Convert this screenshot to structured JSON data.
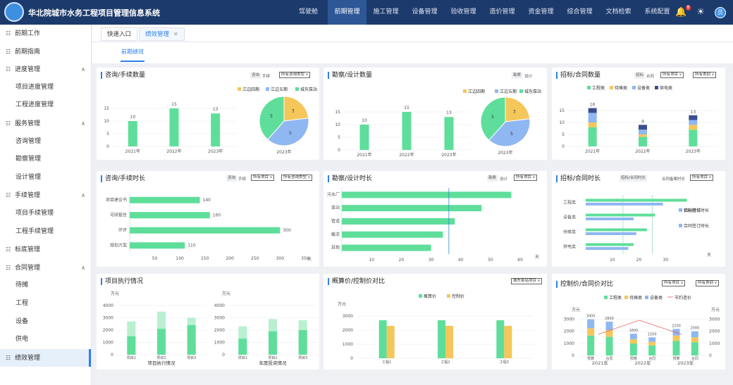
{
  "header": {
    "title": "华北院城市水务工程项目管理信息系统",
    "nav": [
      "驾驶舱",
      "前期管理",
      "施工管理",
      "设备管理",
      "验收管理",
      "造价管理",
      "资金管理",
      "综合管理",
      "文档检索",
      "系统配置"
    ],
    "active_nav": 1,
    "notify_count": "8",
    "avatar": "员"
  },
  "sidebar": {
    "items": [
      {
        "label": "前期工作",
        "group": true
      },
      {
        "label": "前期指南",
        "group": true
      },
      {
        "label": "进度管理",
        "group": true,
        "open": true
      },
      {
        "label": "项目进度管理"
      },
      {
        "label": "工程进度管理"
      },
      {
        "label": "服务管理",
        "group": true,
        "open": true
      },
      {
        "label": "咨询管理"
      },
      {
        "label": "勘察管理"
      },
      {
        "label": "设计管理"
      },
      {
        "label": "手续管理",
        "group": true,
        "open": true
      },
      {
        "label": "项目手续管理"
      },
      {
        "label": "工程手续管理"
      },
      {
        "label": "标底管理",
        "group": true
      },
      {
        "label": "合同管理",
        "group": true,
        "open": true
      },
      {
        "label": "待摊"
      },
      {
        "label": "工程"
      },
      {
        "label": "设备"
      },
      {
        "label": "供电"
      },
      {
        "label": "绩效管理",
        "group": true,
        "active": true
      }
    ]
  },
  "tabs": {
    "quick": "快速入口",
    "perf": "绩效管理"
  },
  "subtab": "前期绩效",
  "panels": {
    "p1": {
      "title": "咨询/手续数量",
      "chip": "咨询",
      "chip2": "手续",
      "dd": "所有咨询类型",
      "chart_data": {
        "type": "bar",
        "categories": [
          "2021年",
          "2022年",
          "2023年"
        ],
        "values": [
          10,
          15,
          13
        ],
        "ylim": [
          0,
          20
        ],
        "yticks": [
          0,
          5,
          10,
          15
        ]
      },
      "pie": {
        "label": "2023年",
        "legend": [
          "江边四期",
          "江边五期",
          "城东泵站"
        ],
        "values": [
          3,
          5,
          5
        ]
      }
    },
    "p2": {
      "title": "勘察/设计数量",
      "chip": "勘察",
      "chip2": "设计",
      "chart_data": {
        "type": "bar",
        "categories": [
          "2021年",
          "2022年",
          "2023年"
        ],
        "values": [
          10,
          15,
          13
        ],
        "ylim": [
          0,
          20
        ],
        "yticks": [
          0,
          5,
          10,
          15
        ]
      },
      "pie": {
        "label": "2023年",
        "legend": [
          "江边四期",
          "江边五期",
          "城东泵站"
        ],
        "values": [
          3,
          5,
          5
        ]
      }
    },
    "p3": {
      "title": "招标/合同数量",
      "chip": "招标",
      "chip2": "合同",
      "dd1": "所有项目",
      "dd2": "所有类别",
      "chart_data": {
        "type": "bar",
        "categories": [
          "2021年",
          "2022年",
          "2023年"
        ],
        "legend": [
          "工程类",
          "待摊类",
          "设备类",
          "供电类"
        ],
        "series": [
          {
            "name": "工程类",
            "values": [
              8,
              4,
              7
            ]
          },
          {
            "name": "待摊类",
            "values": [
              2,
              1,
              2
            ]
          },
          {
            "name": "设备类",
            "values": [
              4,
              2,
              2
            ]
          },
          {
            "name": "供电类",
            "values": [
              2,
              2,
              2
            ]
          }
        ],
        "totals": [
          16,
          9,
          13
        ],
        "ylim": [
          0,
          20
        ],
        "yticks": [
          0,
          5,
          10,
          15
        ]
      }
    },
    "p4": {
      "title": "咨询/手续时长",
      "chip": "咨询",
      "chip2": "手续",
      "dd1": "所有项目",
      "dd2": "所有咨询类型",
      "unit": "天",
      "chart_data": {
        "type": "bar",
        "orientation": "horizontal",
        "categories": [
          "项目建议书",
          "可研报告",
          "环评",
          "规划方案"
        ],
        "values": [
          140,
          160,
          300,
          110
        ],
        "xticks": [
          50,
          100,
          150,
          200,
          250,
          300,
          350
        ]
      }
    },
    "p5": {
      "title": "勘察/设计时长",
      "chip": "勘察",
      "chip2": "设计",
      "dd": "所有项目",
      "unit": "天",
      "chart_data": {
        "type": "bar",
        "orientation": "horizontal",
        "categories": [
          "污水厂",
          "泵站",
          "管道",
          "截流",
          "其他"
        ],
        "values": [
          57,
          47,
          38,
          34,
          30
        ],
        "mark": 36,
        "xticks": [
          10,
          20,
          30,
          40,
          50,
          60
        ]
      }
    },
    "p6": {
      "title": "招标/合同时长",
      "chip": "招标/合同时长",
      "chipt": "合同备案时长",
      "dd": "所有项目",
      "unit": "天",
      "chart_data": {
        "type": "bar",
        "orientation": "horizontal",
        "categories": [
          "工程类",
          "设备类",
          "待摊类",
          "供电类"
        ],
        "legend": [
          "招标时长",
          "合同签订时长"
        ],
        "series": [
          {
            "name": "招标时长",
            "values": [
              38,
              26,
              23,
              18
            ]
          },
          {
            "name": "合同签订时长",
            "values": [
              29,
              18,
              19,
              16
            ]
          }
        ],
        "mark1": 14,
        "mark2": 25,
        "xticks": [
          10,
          20,
          30
        ]
      }
    },
    "p7": {
      "title": "项目执行情况",
      "unit": "万元",
      "chart_data": [
        {
          "type": "bar",
          "label": "项目执行情况",
          "categories": [
            "项目1",
            "项目2",
            "项目3"
          ],
          "values": [
            1500,
            2100,
            2400
          ],
          "totals": [
            2700,
            3500,
            3000
          ],
          "ylim": [
            0,
            4000
          ],
          "yticks": [
            0,
            1000,
            2000,
            3000,
            4000
          ]
        },
        {
          "type": "bar",
          "label": "年度投资情况",
          "categories": [
            "项目1",
            "项目2",
            "项目3"
          ],
          "values": [
            1300,
            1900,
            2000
          ],
          "totals": [
            2300,
            2900,
            2800
          ],
          "ylim": [
            0,
            4000
          ],
          "yticks": [
            0,
            1000,
            2000,
            3000,
            4000
          ]
        }
      ]
    },
    "p8": {
      "title": "概算价/控制价对比",
      "dd": "城东泵站项目",
      "unit": "万元",
      "legend": [
        "概算价",
        "控制价"
      ],
      "chart_data": {
        "type": "bar",
        "categories": [
          "工程1",
          "工程2",
          "工程3"
        ],
        "series": [
          {
            "name": "概算价",
            "values": [
              2700,
              2700,
              2700
            ]
          },
          {
            "name": "控制价",
            "values": [
              2300,
              2300,
              2300
            ]
          }
        ],
        "ylim": [
          0,
          3500
        ],
        "yticks": [
          0,
          1000,
          2000,
          3000
        ]
      }
    },
    "p9": {
      "title": "控制价/合同价对比",
      "dd1": "所有项目",
      "dd2": "所有类别",
      "unit": "万元",
      "legend": [
        "工程类",
        "待摊类",
        "设备类",
        "节约造价"
      ],
      "chart_data": {
        "type": "bar",
        "years": [
          "2021年",
          "2022年",
          "2023年"
        ],
        "categories": [
          "预算",
          "合同",
          "预算",
          "合同",
          "预算",
          "合同"
        ],
        "values": [
          3000,
          2800,
          1800,
          1500,
          2200,
          2000
        ],
        "ylim": [
          0,
          3500
        ],
        "yticks": [
          0,
          1000,
          2000,
          3000
        ]
      }
    }
  }
}
